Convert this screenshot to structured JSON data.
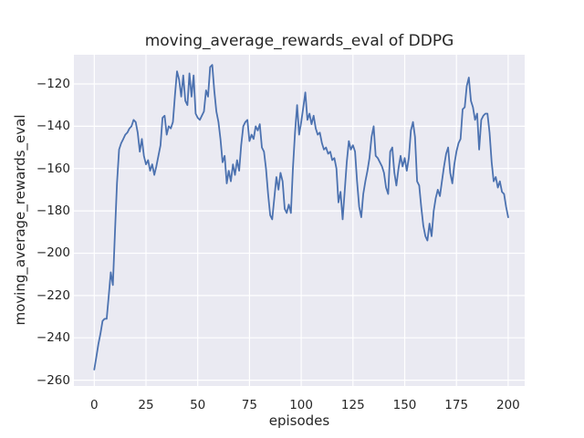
{
  "chart_data": {
    "type": "line",
    "title": "moving_average_rewards_eval of DDPG",
    "xlabel": "episodes",
    "ylabel": "moving_average_rewards_eval",
    "x_start": 0,
    "x_step": 1,
    "x_ticks": [
      0,
      25,
      50,
      75,
      100,
      125,
      150,
      175,
      200
    ],
    "y_ticks": [
      -120,
      -140,
      -160,
      -180,
      -200,
      -220,
      -240,
      -260
    ],
    "xlim": [
      -10,
      208
    ],
    "ylim": [
      -263,
      -105
    ],
    "grid": true,
    "legend": null,
    "style": {
      "line_color": "#4C72B0",
      "plot_bg": "#EAEAF2",
      "grid_color": "#FFFFFF",
      "text_color": "#262626",
      "figure_bg": "#FFFFFF"
    },
    "series": [
      {
        "name": "moving_average_rewards_eval",
        "values": [
          -255,
          -249,
          -243,
          -238,
          -232,
          -231,
          -231,
          -220,
          -209,
          -215,
          -190,
          -167,
          -151,
          -148,
          -146,
          -144,
          -143,
          -141,
          -140,
          -137,
          -138,
          -143,
          -152,
          -146,
          -154,
          -158,
          -156,
          -161,
          -158,
          -163,
          -159,
          -154,
          -149,
          -136,
          -135,
          -144,
          -140,
          -141,
          -138,
          -125,
          -114,
          -118,
          -126,
          -116,
          -128,
          -130,
          -115,
          -126,
          -116,
          -134,
          -136,
          -137,
          -135,
          -133,
          -123,
          -126,
          -112,
          -111,
          -123,
          -133,
          -138,
          -146,
          -157,
          -154,
          -167,
          -161,
          -166,
          -158,
          -163,
          -156,
          -161,
          -149,
          -140,
          -138,
          -137,
          -147,
          -144,
          -146,
          -140,
          -142,
          -139,
          -150,
          -152,
          -160,
          -172,
          -182,
          -184,
          -174,
          -164,
          -170,
          -162,
          -166,
          -179,
          -181,
          -177,
          -181,
          -160,
          -143,
          -130,
          -144,
          -138,
          -131,
          -124,
          -137,
          -134,
          -139,
          -135,
          -141,
          -144,
          -143,
          -148,
          -151,
          -150,
          -153,
          -152,
          -156,
          -155,
          -160,
          -176,
          -171,
          -184,
          -171,
          -157,
          -147,
          -151,
          -149,
          -152,
          -166,
          -178,
          -183,
          -172,
          -166,
          -161,
          -155,
          -145,
          -140,
          -154,
          -155,
          -157,
          -159,
          -162,
          -169,
          -172,
          -152,
          -150,
          -162,
          -168,
          -160,
          -154,
          -159,
          -155,
          -161,
          -155,
          -142,
          -138,
          -145,
          -166,
          -168,
          -178,
          -187,
          -192,
          -194,
          -186,
          -192,
          -180,
          -174,
          -170,
          -173,
          -166,
          -159,
          -153,
          -150,
          -162,
          -167,
          -158,
          -152,
          -148,
          -146,
          -132,
          -131,
          -121,
          -117,
          -128,
          -131,
          -137,
          -134,
          -151,
          -137,
          -135,
          -134,
          -134,
          -143,
          -157,
          -166,
          -164,
          -169,
          -166,
          -171,
          -172,
          -178,
          -183
        ]
      }
    ]
  }
}
